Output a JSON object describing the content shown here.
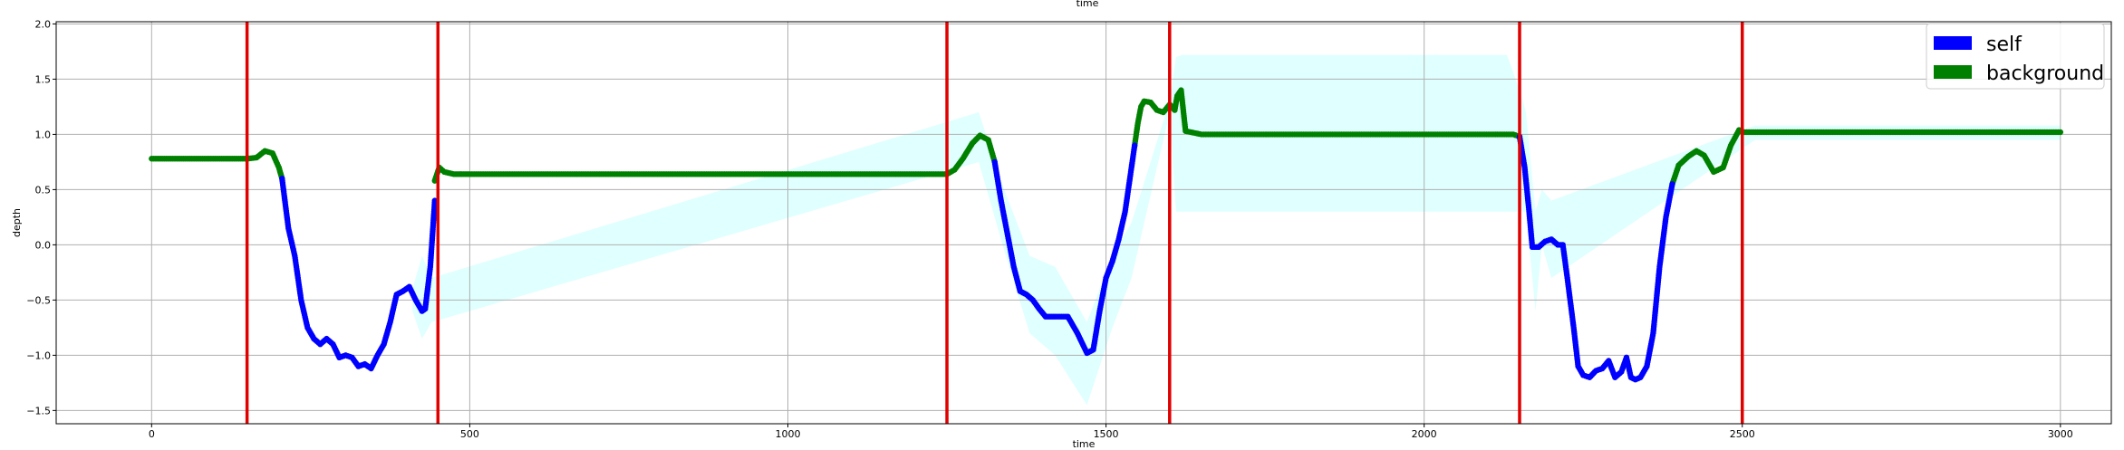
{
  "chart_data": {
    "type": "scatter",
    "title": "time",
    "xlabel": "time",
    "ylabel": "depth",
    "xlim": [
      -150,
      3080
    ],
    "ylim": [
      -1.62,
      2.02
    ],
    "x_ticks": [
      0,
      500,
      1000,
      1500,
      2000,
      2500,
      3000
    ],
    "y_ticks": [
      -1.5,
      -1.0,
      -0.5,
      0.0,
      0.5,
      1.0,
      1.5,
      2.0
    ],
    "x_tick_labels": [
      "0",
      "500",
      "1000",
      "1500",
      "2000",
      "2500",
      "3000"
    ],
    "y_tick_labels": [
      "−1.5",
      "−1.0",
      "−0.5",
      "0.0",
      "0.5",
      "1.0",
      "1.5",
      "2.0"
    ],
    "grid": true,
    "legend": {
      "position": "top-right",
      "entries": [
        {
          "label": "self",
          "color": "#0000ff"
        },
        {
          "label": "background",
          "color": "#008000"
        }
      ]
    },
    "vlines": {
      "color": "#e00000",
      "x": [
        150,
        450,
        1250,
        1600,
        2150,
        2500
      ]
    },
    "uncertainty_band": {
      "color": "#e0ffff",
      "points": [
        [
          410,
          -0.4,
          -0.6
        ],
        [
          425,
          -0.1,
          -0.85
        ],
        [
          440,
          -0.3,
          -0.7
        ],
        [
          1300,
          1.2,
          0.75
        ],
        [
          1340,
          0.5,
          -0.05
        ],
        [
          1380,
          -0.1,
          -0.8
        ],
        [
          1420,
          -0.2,
          -1.0
        ],
        [
          1470,
          -0.7,
          -1.45
        ],
        [
          1510,
          -0.1,
          -0.75
        ],
        [
          1540,
          0.2,
          -0.3
        ],
        [
          1600,
          1.3,
          1.2
        ],
        [
          1610,
          1.7,
          0.3
        ],
        [
          1620,
          1.72,
          0.3
        ],
        [
          2130,
          1.72,
          0.3
        ],
        [
          2150,
          1.4,
          0.3
        ],
        [
          2160,
          1.2,
          0.3
        ],
        [
          2175,
          0.3,
          -0.6
        ],
        [
          2185,
          0.5,
          0.0
        ],
        [
          2200,
          0.4,
          -0.3
        ],
        [
          2520,
          1.08,
          0.95
        ],
        [
          3000,
          1.08,
          0.95
        ]
      ]
    },
    "series": [
      {
        "name": "background",
        "color": "#008000",
        "segments": [
          {
            "x": [
              0,
              50,
              100,
              150,
              165,
              178,
              190,
              200,
              205
            ],
            "y": [
              0.78,
              0.78,
              0.78,
              0.78,
              0.79,
              0.85,
              0.83,
              0.7,
              0.6
            ]
          },
          {
            "x": [
              445,
              452,
              460,
              475,
              500,
              700,
              900,
              1100,
              1250,
              1262,
              1275,
              1290,
              1302,
              1315,
              1325
            ],
            "y": [
              0.58,
              0.7,
              0.66,
              0.64,
              0.64,
              0.64,
              0.64,
              0.64,
              0.64,
              0.68,
              0.78,
              0.92,
              0.99,
              0.95,
              0.75
            ]
          },
          {
            "x": [
              1545,
              1550,
              1555,
              1560,
              1570,
              1580,
              1590,
              1600,
              1608,
              1612,
              1618,
              1625,
              1650,
              1800,
              2000,
              2140,
              2150
            ],
            "y": [
              0.9,
              1.1,
              1.25,
              1.3,
              1.29,
              1.22,
              1.2,
              1.27,
              1.22,
              1.35,
              1.4,
              1.03,
              1.0,
              1.0,
              1.0,
              1.0,
              0.98
            ]
          },
          {
            "x": [
              2390,
              2400,
              2415,
              2428,
              2440,
              2455,
              2470,
              2482,
              2495,
              2500,
              2600,
              2800,
              3000
            ],
            "y": [
              0.55,
              0.72,
              0.8,
              0.85,
              0.81,
              0.66,
              0.7,
              0.9,
              1.04,
              1.02,
              1.02,
              1.02,
              1.02
            ]
          }
        ]
      },
      {
        "name": "self",
        "color": "#0000ff",
        "segments": [
          {
            "x": [
              205,
              215,
              225,
              235,
              245,
              255,
              265,
              275,
              285,
              295,
              305,
              315,
              325,
              335,
              345,
              355,
              365,
              375,
              385,
              395,
              405,
              415,
              425,
              430,
              438,
              445
            ],
            "y": [
              0.6,
              0.15,
              -0.1,
              -0.5,
              -0.75,
              -0.85,
              -0.9,
              -0.85,
              -0.9,
              -1.02,
              -1.0,
              -1.02,
              -1.1,
              -1.08,
              -1.12,
              -1.0,
              -0.9,
              -0.7,
              -0.45,
              -0.42,
              -0.38,
              -0.5,
              -0.6,
              -0.58,
              -0.2,
              0.4
            ]
          },
          {
            "x": [
              1325,
              1335,
              1345,
              1355,
              1365,
              1375,
              1385,
              1395,
              1405,
              1420,
              1440,
              1455,
              1470,
              1480,
              1490,
              1500,
              1510,
              1520,
              1530,
              1540,
              1545
            ],
            "y": [
              0.75,
              0.4,
              0.1,
              -0.2,
              -0.42,
              -0.45,
              -0.5,
              -0.58,
              -0.65,
              -0.65,
              -0.65,
              -0.8,
              -0.98,
              -0.95,
              -0.6,
              -0.3,
              -0.15,
              0.05,
              0.3,
              0.7,
              0.9
            ]
          },
          {
            "x": [
              2150,
              2158,
              2165,
              2170,
              2180,
              2190,
              2200,
              2210,
              2218,
              2225,
              2235,
              2242,
              2250,
              2260,
              2270,
              2280,
              2290,
              2300,
              2310,
              2318,
              2325,
              2332,
              2340,
              2350,
              2360,
              2370,
              2380,
              2390
            ],
            "y": [
              0.98,
              0.7,
              0.3,
              -0.02,
              -0.02,
              0.03,
              0.05,
              0.0,
              0.0,
              -0.3,
              -0.75,
              -1.1,
              -1.18,
              -1.2,
              -1.14,
              -1.12,
              -1.05,
              -1.2,
              -1.15,
              -1.02,
              -1.2,
              -1.22,
              -1.2,
              -1.1,
              -0.8,
              -0.2,
              0.25,
              0.55
            ]
          }
        ]
      }
    ]
  }
}
